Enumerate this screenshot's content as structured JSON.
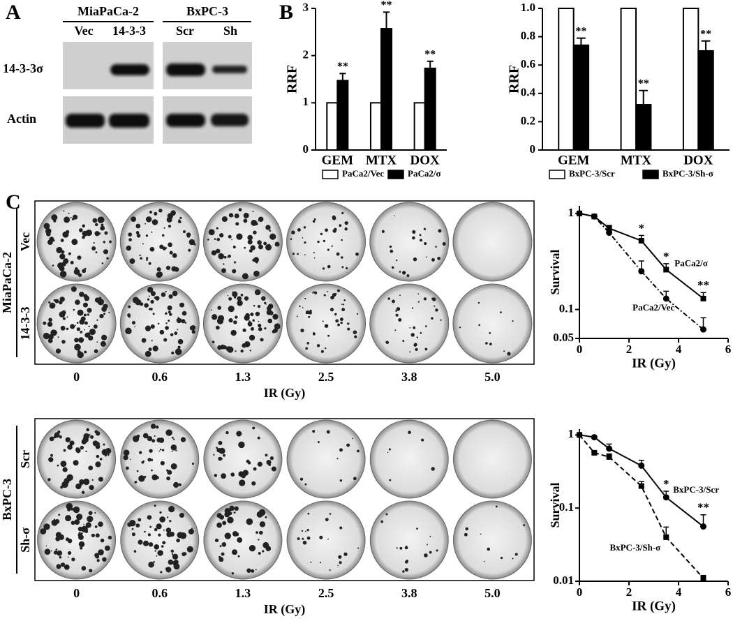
{
  "panel_labels": [
    "A",
    "B",
    "C"
  ],
  "blot": {
    "groups": [
      {
        "name": "MiaPaCa-2",
        "lanes": [
          "Vec",
          "14-3-3"
        ]
      },
      {
        "name": "BxPC-3",
        "lanes": [
          "Scr",
          "Sh"
        ]
      }
    ],
    "rows": [
      "14-3-3σ",
      "Actin"
    ]
  },
  "colony_assays": [
    {
      "cell_line": "MiaPaCa-2",
      "rows": [
        "Vec",
        "14-3-3"
      ],
      "doses": [
        "0",
        "0.6",
        "1.3",
        "2.5",
        "3.8",
        "5.0"
      ],
      "xlabel": "IR (Gy)"
    },
    {
      "cell_line": "BxPC-3",
      "rows": [
        "Scr",
        "Sh-σ"
      ],
      "doses": [
        "0",
        "0.6",
        "1.3",
        "2.5",
        "3.8",
        "5.0"
      ],
      "xlabel": "IR (Gy)"
    }
  ],
  "chart_data": [
    {
      "type": "bar",
      "ylabel": "RRF",
      "categories": [
        "GEM",
        "MTX",
        "DOX"
      ],
      "ylim": [
        0,
        3
      ],
      "yticks": [
        0,
        1,
        2,
        3
      ],
      "series": [
        {
          "name": "PaCa2/Vec",
          "color": "#ffffff",
          "values": [
            1,
            1,
            1
          ]
        },
        {
          "name": "PaCa2/σ",
          "color": "#000000",
          "values": [
            1.47,
            2.57,
            1.73
          ],
          "errors": [
            0.15,
            0.35,
            0.15
          ],
          "significance": [
            "**",
            "**",
            "**"
          ]
        }
      ]
    },
    {
      "type": "bar",
      "ylabel": "RRF",
      "categories": [
        "GEM",
        "MTX",
        "DOX"
      ],
      "ylim": [
        0,
        1
      ],
      "yticks": [
        0,
        0.2,
        0.4,
        0.6,
        0.8,
        {
          "value": 1,
          "label": "1.0"
        }
      ],
      "series": [
        {
          "name": "BxPC-3/Scr",
          "color": "#ffffff",
          "values": [
            1,
            1,
            1
          ]
        },
        {
          "name": "BxPC-3/Sh-σ",
          "color": "#000000",
          "values": [
            0.74,
            0.32,
            0.7
          ],
          "errors": [
            0.05,
            0.1,
            0.07
          ],
          "significance": [
            "**",
            "**",
            "**"
          ]
        }
      ]
    },
    {
      "type": "line",
      "xlabel": "IR (Gy)",
      "ylabel": "Survival",
      "log_y": true,
      "xlim": [
        0,
        6
      ],
      "xticks": [
        0,
        2,
        4,
        6
      ],
      "ylim": [
        0.05,
        1.2
      ],
      "yticks": [
        1,
        0.1,
        0.05
      ],
      "series": [
        {
          "name": "PaCa2/σ",
          "color": "#000000",
          "dash": "solid",
          "marker": "square",
          "x": [
            0,
            0.6,
            1.2,
            2.5,
            3.5,
            5
          ],
          "values": [
            1,
            0.93,
            0.7,
            0.52,
            0.26,
            0.13
          ],
          "errors": [
            0.02,
            0.03,
            0.05,
            0.07,
            0.04,
            0.02
          ],
          "significance": [
            null,
            null,
            null,
            "*",
            "*",
            "**"
          ]
        },
        {
          "name": "PaCa2/Vec",
          "color": "#000000",
          "dash": "dashdot",
          "marker": "circle",
          "x": [
            0,
            0.6,
            1.2,
            2.5,
            3.5,
            5
          ],
          "values": [
            1,
            0.93,
            0.63,
            0.25,
            0.13,
            0.062
          ],
          "errors": [
            0.02,
            0.03,
            0.04,
            0.07,
            0.025,
            0.02
          ]
        }
      ]
    },
    {
      "type": "line",
      "xlabel": "IR (Gy)",
      "ylabel": "Survival",
      "log_y": true,
      "xlim": [
        0,
        6
      ],
      "xticks": [
        0,
        2,
        4,
        6
      ],
      "ylim": [
        0.01,
        1.2
      ],
      "yticks": [
        1,
        0.1,
        0.01
      ],
      "series": [
        {
          "name": "BxPC-3/Scr",
          "color": "#000000",
          "dash": "solid",
          "marker": "circle",
          "x": [
            0,
            0.6,
            1.2,
            2.5,
            3.5,
            5
          ],
          "values": [
            1,
            0.93,
            0.65,
            0.38,
            0.14,
            0.056
          ],
          "errors": [
            0.02,
            0.03,
            0.1,
            0.07,
            0.03,
            0.025
          ],
          "significance": [
            null,
            null,
            null,
            null,
            "*",
            "**"
          ]
        },
        {
          "name": "BxPC-3/Sh-σ",
          "color": "#000000",
          "dash": "dashed",
          "marker": "square",
          "x": [
            0,
            0.6,
            1.2,
            2.5,
            3.5,
            5
          ],
          "values": [
            1,
            0.57,
            0.5,
            0.2,
            0.04,
            0.011
          ],
          "errors": [
            0.02,
            0.03,
            0.05,
            0.03,
            0.015,
            0.001
          ]
        }
      ]
    }
  ]
}
